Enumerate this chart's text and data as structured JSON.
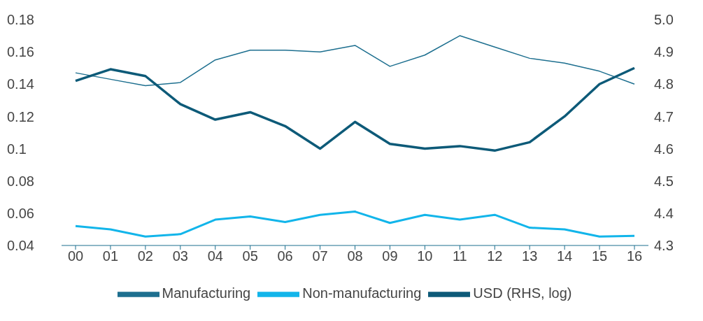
{
  "chart_data": {
    "type": "line",
    "categories": [
      "00",
      "01",
      "02",
      "03",
      "04",
      "05",
      "06",
      "07",
      "08",
      "09",
      "10",
      "11",
      "12",
      "13",
      "14",
      "15",
      "16"
    ],
    "series": [
      {
        "name": "Manufacturing",
        "color": "#1d6f8f",
        "values": [
          0.147,
          0.143,
          0.139,
          0.141,
          0.155,
          0.161,
          0.161,
          0.16,
          0.164,
          0.151,
          0.158,
          0.17,
          0.163,
          0.156,
          0.153,
          0.148,
          0.14
        ]
      },
      {
        "name": "Non-manufacturing",
        "color": "#12b5ea",
        "values": [
          0.052,
          0.05,
          0.0455,
          0.047,
          0.056,
          0.058,
          0.0545,
          0.059,
          0.061,
          0.054,
          0.059,
          0.056,
          0.059,
          0.051,
          0.05,
          0.0455,
          0.046
        ]
      },
      {
        "name": "USD (RHS, log)",
        "color": "#0d5a78",
        "axis": "y2",
        "values": [
          4.81,
          4.846,
          4.825,
          4.738,
          4.69,
          4.713,
          4.67,
          4.6,
          4.683,
          4.615,
          4.6,
          4.608,
          4.594,
          4.62,
          4.7,
          4.8,
          4.85
        ]
      }
    ],
    "ylim": [
      0.04,
      0.18
    ],
    "yticks": [
      0.04,
      0.06,
      0.08,
      0.1,
      0.12,
      0.14,
      0.16,
      0.18
    ],
    "y2lim": [
      4.3,
      5.0
    ],
    "y2ticks": [
      4.3,
      4.4,
      4.5,
      4.6,
      4.7,
      4.8,
      4.9,
      {
        "value": 5,
        "label": "5.0"
      }
    ],
    "grid": false,
    "legend": "bottom",
    "marker": "none",
    "line_style": "solid"
  }
}
